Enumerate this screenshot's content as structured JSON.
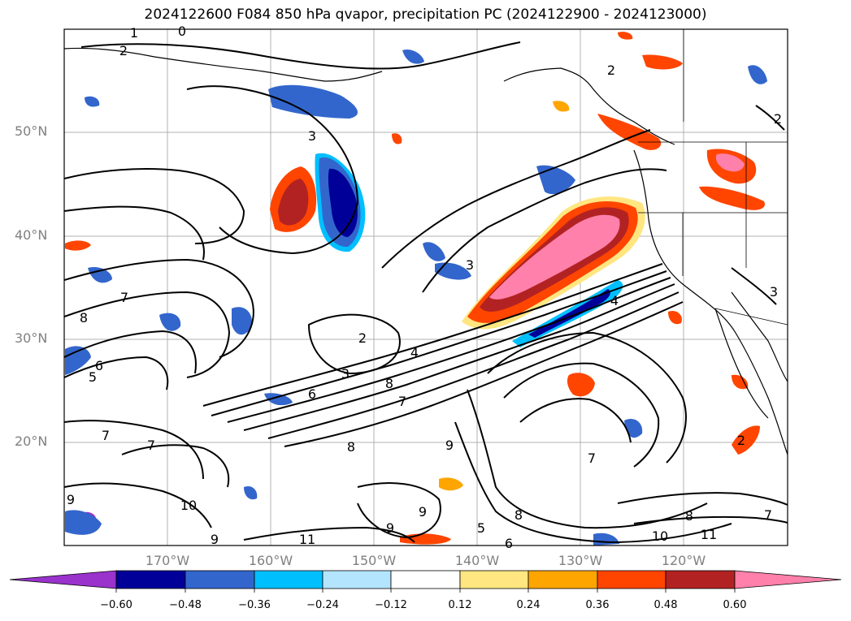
{
  "title": "2024122600 F084 850 hPa qvapor, precipitation PC (2024122900 - 2024123000)",
  "lat_labels": [
    "50°N",
    "40°N",
    "30°N",
    "20°N"
  ],
  "lon_labels": [
    "170°W",
    "160°W",
    "150°W",
    "140°W",
    "130°W",
    "120°W"
  ],
  "contour_labels": [
    "1",
    "0",
    "2",
    "3",
    "2",
    "2",
    "8",
    "7",
    "6",
    "5",
    "4",
    "3",
    "2",
    "4",
    "3",
    "6",
    "8",
    "7",
    "7",
    "7",
    "8",
    "9",
    "10",
    "11",
    "9",
    "8",
    "9",
    "6",
    "7",
    "5",
    "7",
    "8",
    "9",
    "10",
    "11",
    "9",
    "2",
    "3"
  ],
  "colorbar": {
    "ticks": [
      "−0.60",
      "−0.48",
      "−0.36",
      "−0.24",
      "−0.12",
      "0.12",
      "0.24",
      "0.36",
      "0.48",
      "0.60"
    ],
    "colors": [
      "#9933cc",
      "#000099",
      "#3366cc",
      "#00bfff",
      "#b3e5ff",
      "#ffffff",
      "#ffe680",
      "#ffa500",
      "#ff4500",
      "#b22222",
      "#ff80aa",
      "#ff80aa"
    ]
  }
}
